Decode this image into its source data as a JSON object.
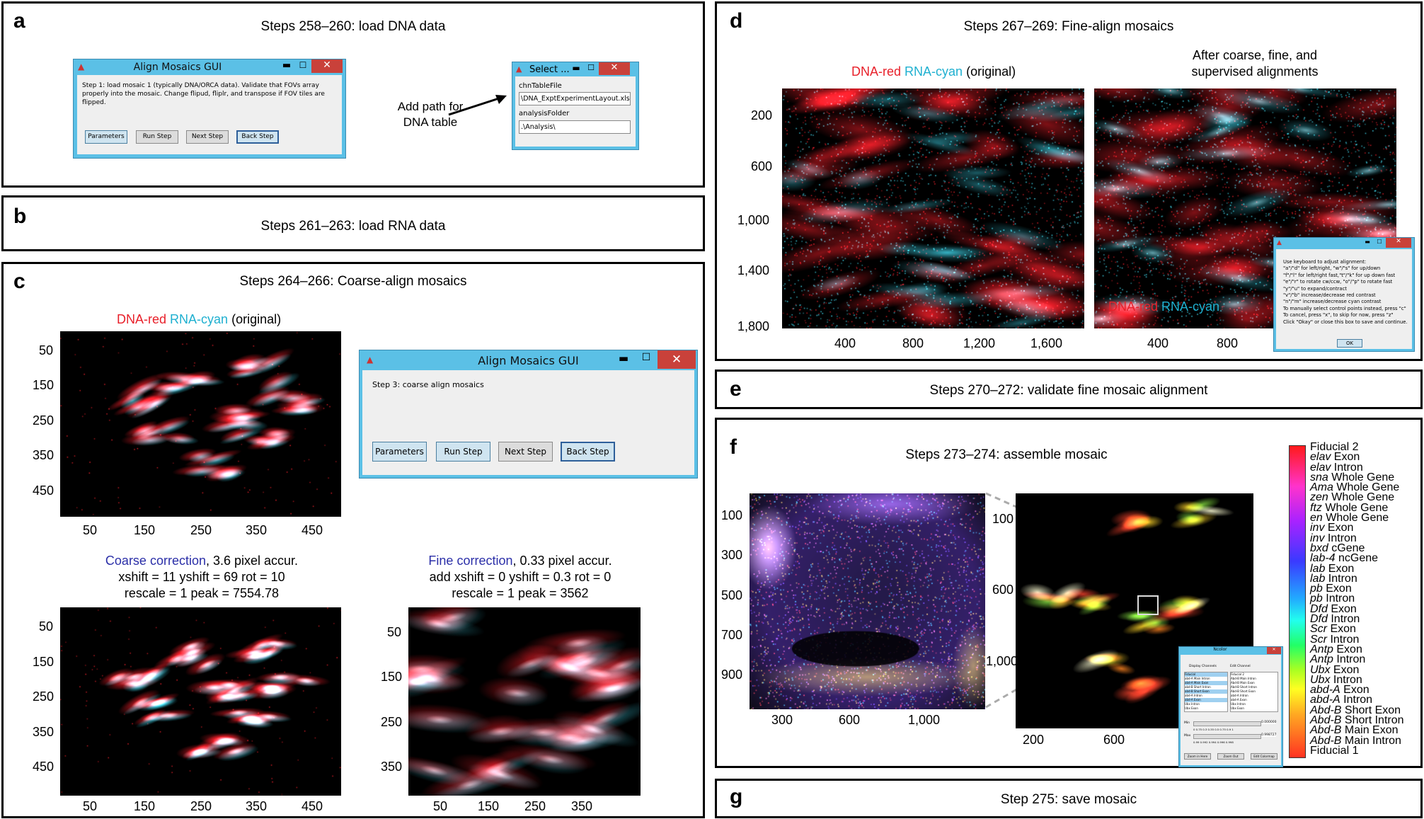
{
  "panels": {
    "a": {
      "label": "a",
      "title": "Steps 258–260: load DNA data"
    },
    "b": {
      "label": "b",
      "title": "Steps 261–263: load RNA data"
    },
    "c": {
      "label": "c",
      "title": "Steps 264–266: Coarse-align mosaics"
    },
    "d": {
      "label": "d",
      "title": "Steps 267–269: Fine-align mosaics"
    },
    "e": {
      "label": "e",
      "title": "Steps 270–272: validate fine mosaic alignment"
    },
    "f": {
      "label": "f",
      "title": "Steps 273–274: assemble mosaic"
    },
    "g": {
      "label": "g",
      "title": "Step 275: save mosaic"
    }
  },
  "win_a": {
    "title": "Align Mosaics GUI",
    "text": "Step 1: load mosaic 1 (typically DNA/ORCA data).  Validate that FOVs array properly into the mosaic. Change flipud, fliplr, and transpose if FOV tiles are flipped.",
    "buttons": [
      "Parameters",
      "Run Step",
      "Next Step",
      "Back Step"
    ]
  },
  "win_select": {
    "title": "Select ...",
    "field1_label": "chnTableFile",
    "field1_value": "\\DNA_ExptExperimentLayout.xlsx",
    "field2_label": "analysisFolder",
    "field2_value": ".\\Analysis\\"
  },
  "annotation_a": {
    "line1": "Add path for",
    "line2": "DNA table"
  },
  "win_c": {
    "title": "Align Mosaics GUI",
    "text": "Step 3: coarse align mosaics",
    "buttons": [
      "Parameters",
      "Run Step",
      "Next Step",
      "Back Step"
    ]
  },
  "panel_c": {
    "legend_dna": "DNA-red",
    "legend_rna": "RNA-cyan",
    "legend_suffix": "(original)",
    "coarse_title": "Coarse correction",
    "coarse_acc": ", 3.6 pixel accur.",
    "coarse_line2": "xshift = 11 yshift = 69 rot = 10",
    "coarse_line3": "rescale = 1 peak = 7554.78",
    "fine_title": "Fine correction",
    "fine_acc": ", 0.33 pixel accur.",
    "fine_line2": "add xshift = 0 yshift = 0.3 rot = 0",
    "fine_line3": "rescale = 1 peak = 3562",
    "img1_y": [
      "50",
      "150",
      "250",
      "350",
      "450"
    ],
    "img1_x": [
      "50",
      "150",
      "250",
      "350",
      "450"
    ],
    "img2_y": [
      "50",
      "150",
      "250",
      "350",
      "450"
    ],
    "img2_x": [
      "50",
      "150",
      "250",
      "350",
      "450"
    ],
    "img3_y": [
      "50",
      "150",
      "250",
      "350"
    ],
    "img3_x": [
      "50",
      "150",
      "250",
      "350"
    ]
  },
  "panel_d": {
    "legend_dna": "DNA-red",
    "legend_rna": "RNA-cyan",
    "legend_suffix": "(original)",
    "right_title_1": "After coarse, fine, and",
    "right_title_2": "supervised alignments",
    "y_ticks": [
      "200",
      "600",
      "1,000",
      "1,400",
      "1,800"
    ],
    "x_ticks_left": [
      "400",
      "800",
      "1,200",
      "1,600"
    ],
    "x_ticks_right": [
      "400",
      "800"
    ],
    "inner_dna": "DNA-red",
    "inner_rna": "RNA-cyan",
    "dialog_lines": [
      "Use keyboard to adjust alignment:",
      "\"a\"/\"d\" for left/right, \"w\"/\"s\" for up/down",
      "\"f\"/\"l\" for left/right fast,\"t\"/\"k\" for up down fast",
      "\"e\"/\"r\" to rotate cw/ccw, \"o\"/\"p\" to rotate fast",
      "\"y\"/\"u\" to expand/contract",
      "\"v\"/\"b\" increase/decrease red contrast",
      "\"n\"/\"m\" increase/decrease cyan contrast",
      "To manually select control points instead, press \"c\"",
      "To cancel, press \"x\", to skip for now, press \"z\"",
      "Click \"Okay\" or close this box to save and continue."
    ],
    "dialog_ok": "OK"
  },
  "panel_f": {
    "left_y": [
      "100",
      "300",
      "500",
      "700",
      "900"
    ],
    "left_x": [
      "300",
      "600",
      "1,000"
    ],
    "right_y": [
      "100",
      "600",
      "1,000"
    ],
    "right_x": [
      "200",
      "600"
    ],
    "ncolor_title": "Ncolor",
    "ncolor_display": "Display Channels",
    "ncolor_edit": "Edit Channel",
    "ncolor_list_left": [
      "Fiducial",
      "abd-A Main Intron",
      "abd-A Main Exon",
      "abd-B Short Intron",
      "abd-B Short Exon",
      "abd-A Intron",
      "abd-A Exon",
      "Ubx Intron",
      "Ubx Exon"
    ],
    "ncolor_list_right": [
      "Fiducial 2",
      "Abd-B Main Intron",
      "Abd-B Main Exon",
      "Abd-B Short Intron",
      "Abd-B Short Exon",
      "abd-A Intron",
      "abd-A Exon",
      "Ubx Intron",
      "Ubx Exon"
    ],
    "ncolor_min": "Min",
    "ncolor_max": "Max",
    "ncolor_min_val": "0.000000",
    "ncolor_max_val": "0.998727",
    "ncolor_scale1": "0   0.75  0.3  0.35  0.5  0.75  0.9  1",
    "ncolor_scale2": "0.99  0.992  0.994  0.996  0.998",
    "ncolor_buttons": [
      "Zoom in Here",
      "Zoom Out",
      "Edit Colormap"
    ]
  },
  "legend_f": [
    {
      "gene": "",
      "rest": "Fiducial 2"
    },
    {
      "gene": "elav",
      "rest": " Exon"
    },
    {
      "gene": "elav",
      "rest": " Intron"
    },
    {
      "gene": "sna",
      "rest": " Whole Gene"
    },
    {
      "gene": "Ama",
      "rest": " Whole Gene"
    },
    {
      "gene": "zen",
      "rest": " Whole Gene"
    },
    {
      "gene": "ftz",
      "rest": " Whole Gene"
    },
    {
      "gene": "en",
      "rest": " Whole Gene"
    },
    {
      "gene": "inv",
      "rest": " Exon"
    },
    {
      "gene": "inv",
      "rest": " Intron"
    },
    {
      "gene": "bxd",
      "rest": " cGene"
    },
    {
      "gene": "lab-4",
      "rest": " ncGene"
    },
    {
      "gene": "lab",
      "rest": " Exon"
    },
    {
      "gene": "lab",
      "rest": " Intron"
    },
    {
      "gene": "pb",
      "rest": " Exon"
    },
    {
      "gene": "pb",
      "rest": " Intron"
    },
    {
      "gene": "Dfd",
      "rest": " Exon"
    },
    {
      "gene": "Dfd",
      "rest": " Intron"
    },
    {
      "gene": "Scr",
      "rest": " Exon"
    },
    {
      "gene": "Scr",
      "rest": " Intron"
    },
    {
      "gene": "Antp",
      "rest": " Exon"
    },
    {
      "gene": "Antp",
      "rest": " Intron"
    },
    {
      "gene": "Ubx",
      "rest": " Exon"
    },
    {
      "gene": "Ubx",
      "rest": " Intron"
    },
    {
      "gene": "abd-A",
      "rest": " Exon"
    },
    {
      "gene": "abd-A",
      "rest": " Intron"
    },
    {
      "gene": "Abd-B",
      "rest": " Short Exon"
    },
    {
      "gene": "Abd-B",
      "rest": " Short Intron"
    },
    {
      "gene": "Abd-B",
      "rest": " Main Exon"
    },
    {
      "gene": "Abd-B",
      "rest": " Main Intron"
    },
    {
      "gene": "",
      "rest": "Fiducial 1"
    }
  ]
}
